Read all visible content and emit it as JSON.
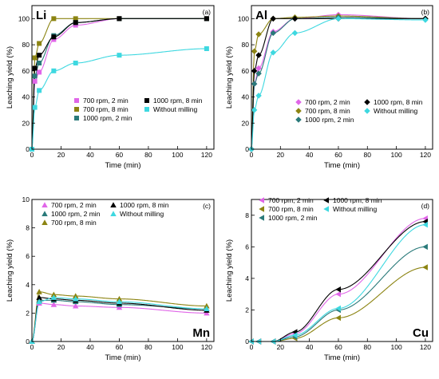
{
  "colors": {
    "700 rpm, 2 min": "#e066e8",
    "700 rpm, 8 min": "#8c8412",
    "1000 rpm, 2 min": "#2a7a7a",
    "1000 rpm, 8 min": "#000000",
    "Without milling": "#3ed8e0"
  },
  "chart_data": [
    {
      "type": "scatter",
      "panel_label": "(a)",
      "element_label": "Li",
      "xlabel": "Time (min)",
      "ylabel": "Leaching yield (%)",
      "xlim": [
        0,
        125
      ],
      "ylim": [
        0,
        110
      ],
      "xticks": [
        0,
        20,
        40,
        60,
        80,
        100,
        120
      ],
      "yticks": [
        0,
        20,
        40,
        60,
        80,
        100
      ],
      "marker": "square",
      "legend_placement": "bottom-right",
      "series": [
        {
          "name": "700 rpm, 2 min",
          "x": [
            0,
            2,
            5,
            15,
            30,
            60,
            120
          ],
          "y": [
            0,
            52,
            59,
            84,
            95,
            100,
            100
          ]
        },
        {
          "name": "700 rpm, 8 min",
          "x": [
            0,
            2,
            5,
            15,
            30,
            60,
            120
          ],
          "y": [
            0,
            70,
            81,
            100,
            100,
            100,
            100
          ]
        },
        {
          "name": "1000 rpm, 2 min",
          "x": [
            0,
            2,
            5,
            15,
            30,
            60,
            120
          ],
          "y": [
            0,
            56,
            66,
            87,
            97,
            100,
            100
          ]
        },
        {
          "name": "1000 rpm, 8 min",
          "x": [
            0,
            2,
            5,
            15,
            30,
            60,
            120
          ],
          "y": [
            0,
            62,
            72,
            86,
            97,
            100,
            100
          ]
        },
        {
          "name": "Without milling",
          "x": [
            0,
            2,
            5,
            15,
            30,
            60,
            120
          ],
          "y": [
            0,
            32,
            45,
            60,
            66,
            72,
            77
          ]
        }
      ]
    },
    {
      "type": "scatter",
      "panel_label": "(b)",
      "element_label": "Al",
      "xlabel": "Time (min)",
      "ylabel": "Leaching yield (%)",
      "xlim": [
        0,
        125
      ],
      "ylim": [
        0,
        110
      ],
      "xticks": [
        0,
        20,
        40,
        60,
        80,
        100,
        120
      ],
      "yticks": [
        0,
        20,
        40,
        60,
        80,
        100
      ],
      "marker": "diamond",
      "legend_placement": "bottom-right",
      "series": [
        {
          "name": "700 rpm, 2 min",
          "x": [
            0,
            2,
            5,
            15,
            30,
            60,
            120
          ],
          "y": [
            0,
            50,
            62,
            90,
            100,
            103,
            100
          ]
        },
        {
          "name": "700 rpm, 8 min",
          "x": [
            0,
            2,
            5,
            15,
            30,
            60,
            120
          ],
          "y": [
            0,
            75,
            88,
            100,
            101,
            102,
            100
          ]
        },
        {
          "name": "1000 rpm, 2 min",
          "x": [
            0,
            2,
            5,
            15,
            30,
            60,
            120
          ],
          "y": [
            0,
            50,
            58,
            89,
            100,
            101,
            100
          ]
        },
        {
          "name": "1000 rpm, 8 min",
          "x": [
            0,
            2,
            5,
            15,
            30,
            60,
            120
          ],
          "y": [
            0,
            60,
            72,
            100,
            100,
            100,
            100
          ]
        },
        {
          "name": "Without milling",
          "x": [
            0,
            2,
            5,
            15,
            30,
            60,
            120
          ],
          "y": [
            0,
            30,
            41,
            74,
            89,
            100,
            99
          ]
        }
      ]
    },
    {
      "type": "scatter",
      "panel_label": "(c)",
      "element_label": "Mn",
      "xlabel": "Time (min)",
      "ylabel": "Leaching yield (%)",
      "xlim": [
        0,
        125
      ],
      "ylim": [
        0,
        10
      ],
      "xticks": [
        0,
        20,
        40,
        60,
        80,
        100,
        120
      ],
      "yticks": [
        0,
        2,
        4,
        6,
        8,
        10
      ],
      "marker": "triangle",
      "legend_placement": "top-left",
      "series": [
        {
          "name": "700 rpm, 2 min",
          "x": [
            0,
            5,
            15,
            30,
            60,
            120
          ],
          "y": [
            0,
            2.7,
            2.6,
            2.5,
            2.4,
            2.0
          ]
        },
        {
          "name": "700 rpm, 8 min",
          "x": [
            0,
            5,
            15,
            30,
            60,
            120
          ],
          "y": [
            0,
            3.5,
            3.3,
            3.2,
            3.0,
            2.5
          ]
        },
        {
          "name": "1000 rpm, 2 min",
          "x": [
            0,
            5,
            15,
            30,
            60,
            120
          ],
          "y": [
            0,
            2.9,
            2.9,
            2.8,
            2.6,
            2.3
          ]
        },
        {
          "name": "1000 rpm, 8 min",
          "x": [
            0,
            5,
            15,
            30,
            60,
            120
          ],
          "y": [
            0,
            3.1,
            3.0,
            2.9,
            2.7,
            2.2
          ]
        },
        {
          "name": "Without milling",
          "x": [
            0,
            5,
            15,
            30,
            60,
            120
          ],
          "y": [
            0,
            2.8,
            3.1,
            3.0,
            2.8,
            2.3
          ]
        }
      ]
    },
    {
      "type": "scatter",
      "panel_label": "(d)",
      "element_label": "Cu",
      "xlabel": "Time (min)",
      "ylabel": "Leaching yield (%)",
      "xlim": [
        0,
        125
      ],
      "ylim": [
        0,
        9
      ],
      "xticks": [
        0,
        20,
        40,
        60,
        80,
        100,
        120
      ],
      "yticks": [
        0,
        2,
        4,
        6,
        8
      ],
      "marker": "left-triangle",
      "legend_placement": "top-left",
      "series": [
        {
          "name": "700 rpm, 2 min",
          "x": [
            0,
            5,
            15,
            30,
            60,
            120
          ],
          "y": [
            0,
            0,
            0,
            0.5,
            3.0,
            7.8
          ]
        },
        {
          "name": "700 rpm, 8 min",
          "x": [
            0,
            5,
            15,
            30,
            60,
            120
          ],
          "y": [
            0,
            0,
            0,
            0.2,
            1.5,
            4.7
          ]
        },
        {
          "name": "1000 rpm, 2 min",
          "x": [
            0,
            5,
            15,
            30,
            60,
            120
          ],
          "y": [
            0,
            0,
            0,
            0.3,
            2.0,
            6.0
          ]
        },
        {
          "name": "1000 rpm, 8 min",
          "x": [
            0,
            5,
            15,
            30,
            60,
            120
          ],
          "y": [
            0,
            0,
            0,
            0.6,
            3.3,
            7.6
          ]
        },
        {
          "name": "Without milling",
          "x": [
            0,
            5,
            15,
            30,
            60,
            120
          ],
          "y": [
            0,
            0,
            0,
            0.4,
            2.1,
            7.4
          ]
        }
      ]
    }
  ]
}
